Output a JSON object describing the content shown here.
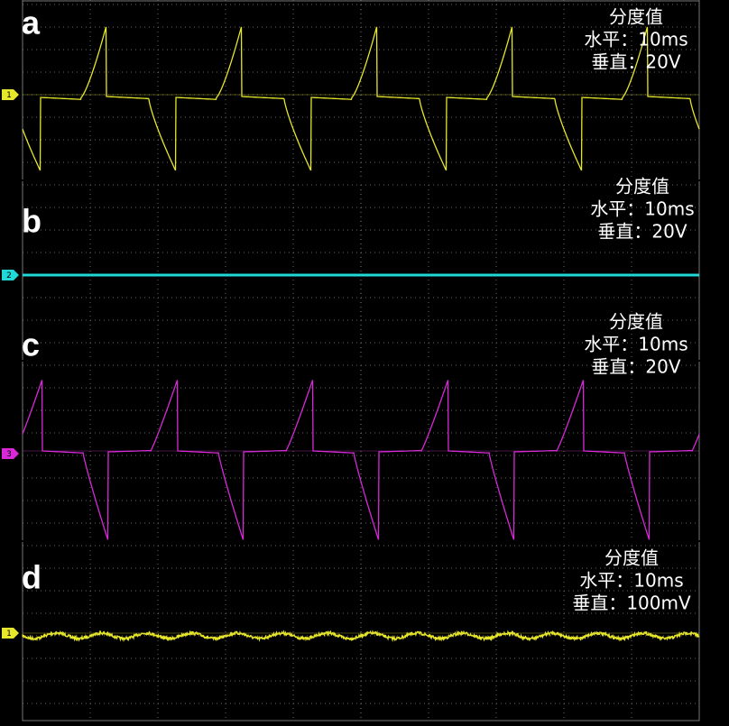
{
  "panels": [
    {
      "label": "a",
      "channel": "1",
      "annotation": [
        "分度值",
        "水平：10ms",
        "垂直：20V"
      ]
    },
    {
      "label": "b",
      "channel": "2",
      "annotation": [
        "分度值",
        "水平：10ms",
        "垂直：20V"
      ]
    },
    {
      "label": "c",
      "channel": "3",
      "annotation": [
        "分度值",
        "水平：10ms",
        "垂直：20V"
      ]
    },
    {
      "label": "d",
      "channel": "1",
      "annotation": [
        "分度值",
        "水平：10ms",
        "垂直：100mV"
      ]
    }
  ]
}
